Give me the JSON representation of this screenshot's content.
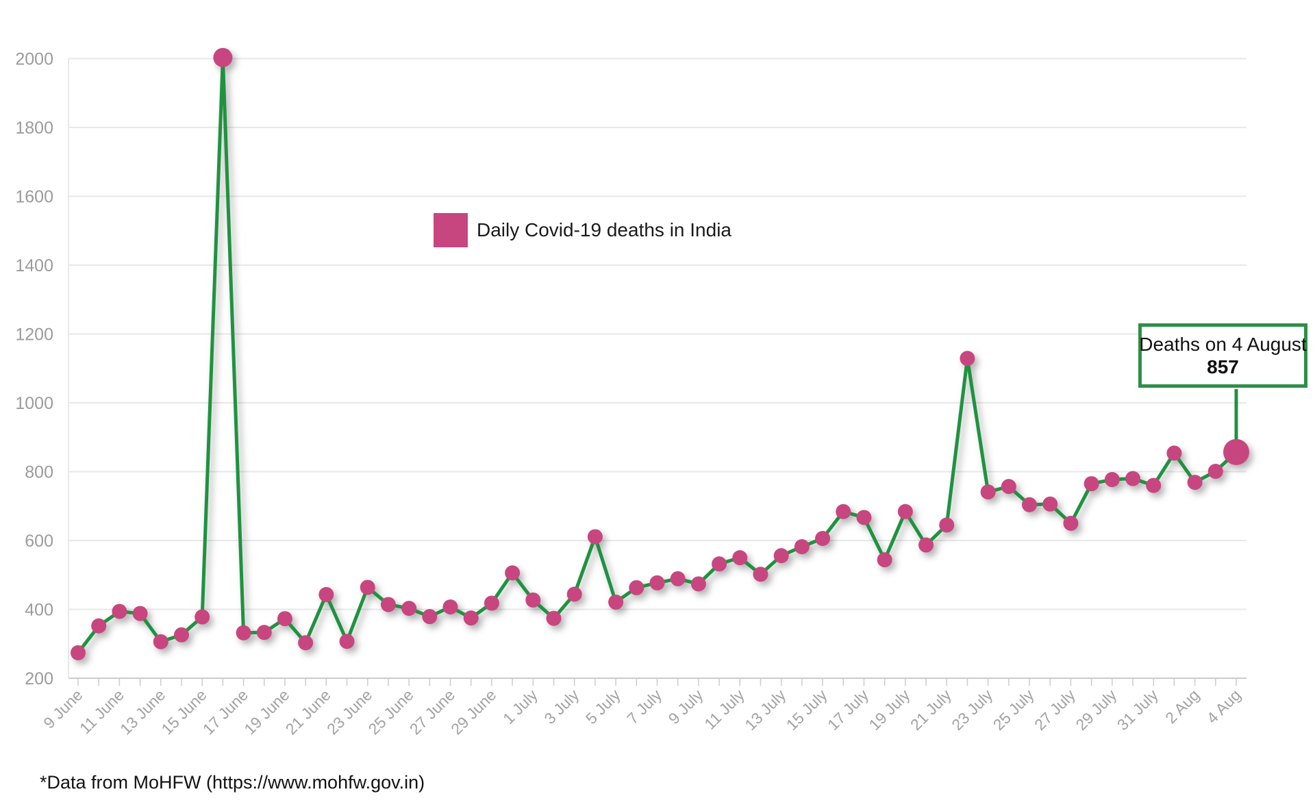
{
  "legend": {
    "label": "Daily Covid-19 deaths in India"
  },
  "annotation": {
    "line1": "Deaths on 4 August",
    "value": "857",
    "border_color": "#2e8f47"
  },
  "footer": {
    "note": "*Data from MoHFW (https://www.mohfw.gov.in)"
  },
  "chart_data": {
    "type": "line",
    "title": "",
    "series_name": "Daily Covid-19 deaths in India",
    "x": [
      "9 June",
      "10 June",
      "11 June",
      "12 June",
      "13 June",
      "14 June",
      "15 June",
      "16 June",
      "17 June",
      "18 June",
      "19 June",
      "20 June",
      "21 June",
      "22 June",
      "23 June",
      "24 June",
      "25 June",
      "26 June",
      "27 June",
      "28 June",
      "29 June",
      "30 June",
      "1 July",
      "2 July",
      "3 July",
      "4 July",
      "5 July",
      "6 July",
      "7 July",
      "8 July",
      "9 July",
      "10 July",
      "11 July",
      "12 July",
      "13 July",
      "14 July",
      "15 July",
      "16 July",
      "17 July",
      "18 July",
      "19 July",
      "20 July",
      "21 July",
      "22 July",
      "23 July",
      "24 July",
      "25 July",
      "26 July",
      "27 July",
      "28 July",
      "29 July",
      "30 July",
      "31 July",
      "1 Aug",
      "2 Aug",
      "3 Aug",
      "4 Aug"
    ],
    "values": [
      274,
      352,
      394,
      388,
      306,
      326,
      378,
      2003,
      332,
      333,
      373,
      303,
      443,
      307,
      464,
      414,
      403,
      379,
      407,
      375,
      418,
      506,
      427,
      374,
      444,
      611,
      421,
      463,
      477,
      489,
      474,
      532,
      550,
      502,
      556,
      582,
      606,
      684,
      667,
      544,
      684,
      587,
      645,
      1129,
      741,
      757,
      704,
      706,
      650,
      765,
      777,
      780,
      760,
      854,
      769,
      801,
      857
    ],
    "ylim": [
      200,
      2000
    ],
    "y_ticks": [
      200,
      400,
      600,
      800,
      1000,
      1200,
      1400,
      1600,
      1800,
      2000
    ],
    "x_tick_labels": [
      "9 June",
      "11 June",
      "13 June",
      "15 June",
      "17 June",
      "19 June",
      "21 June",
      "23 June",
      "25 June",
      "27 June",
      "29 June",
      "1 July",
      "3 July",
      "5 July",
      "7 July",
      "9 July",
      "11 July",
      "13 July",
      "15 July",
      "17 July",
      "19 July",
      "21 July",
      "23 July",
      "25 July",
      "27 July",
      "29 July",
      "31 July",
      "2 Aug",
      "4 Aug"
    ],
    "xtick_label_every": 2,
    "grid": "horizontal",
    "legend_position": "inside-top-center",
    "line_color": "#1f9240",
    "point_color": "#c8467f",
    "grid_color": "#e8e8e8",
    "axis_line_color": "#cccccc",
    "highlight_index": 56,
    "peak_index": 7,
    "annotated_point": {
      "x": "4 Aug",
      "value": 857
    }
  }
}
